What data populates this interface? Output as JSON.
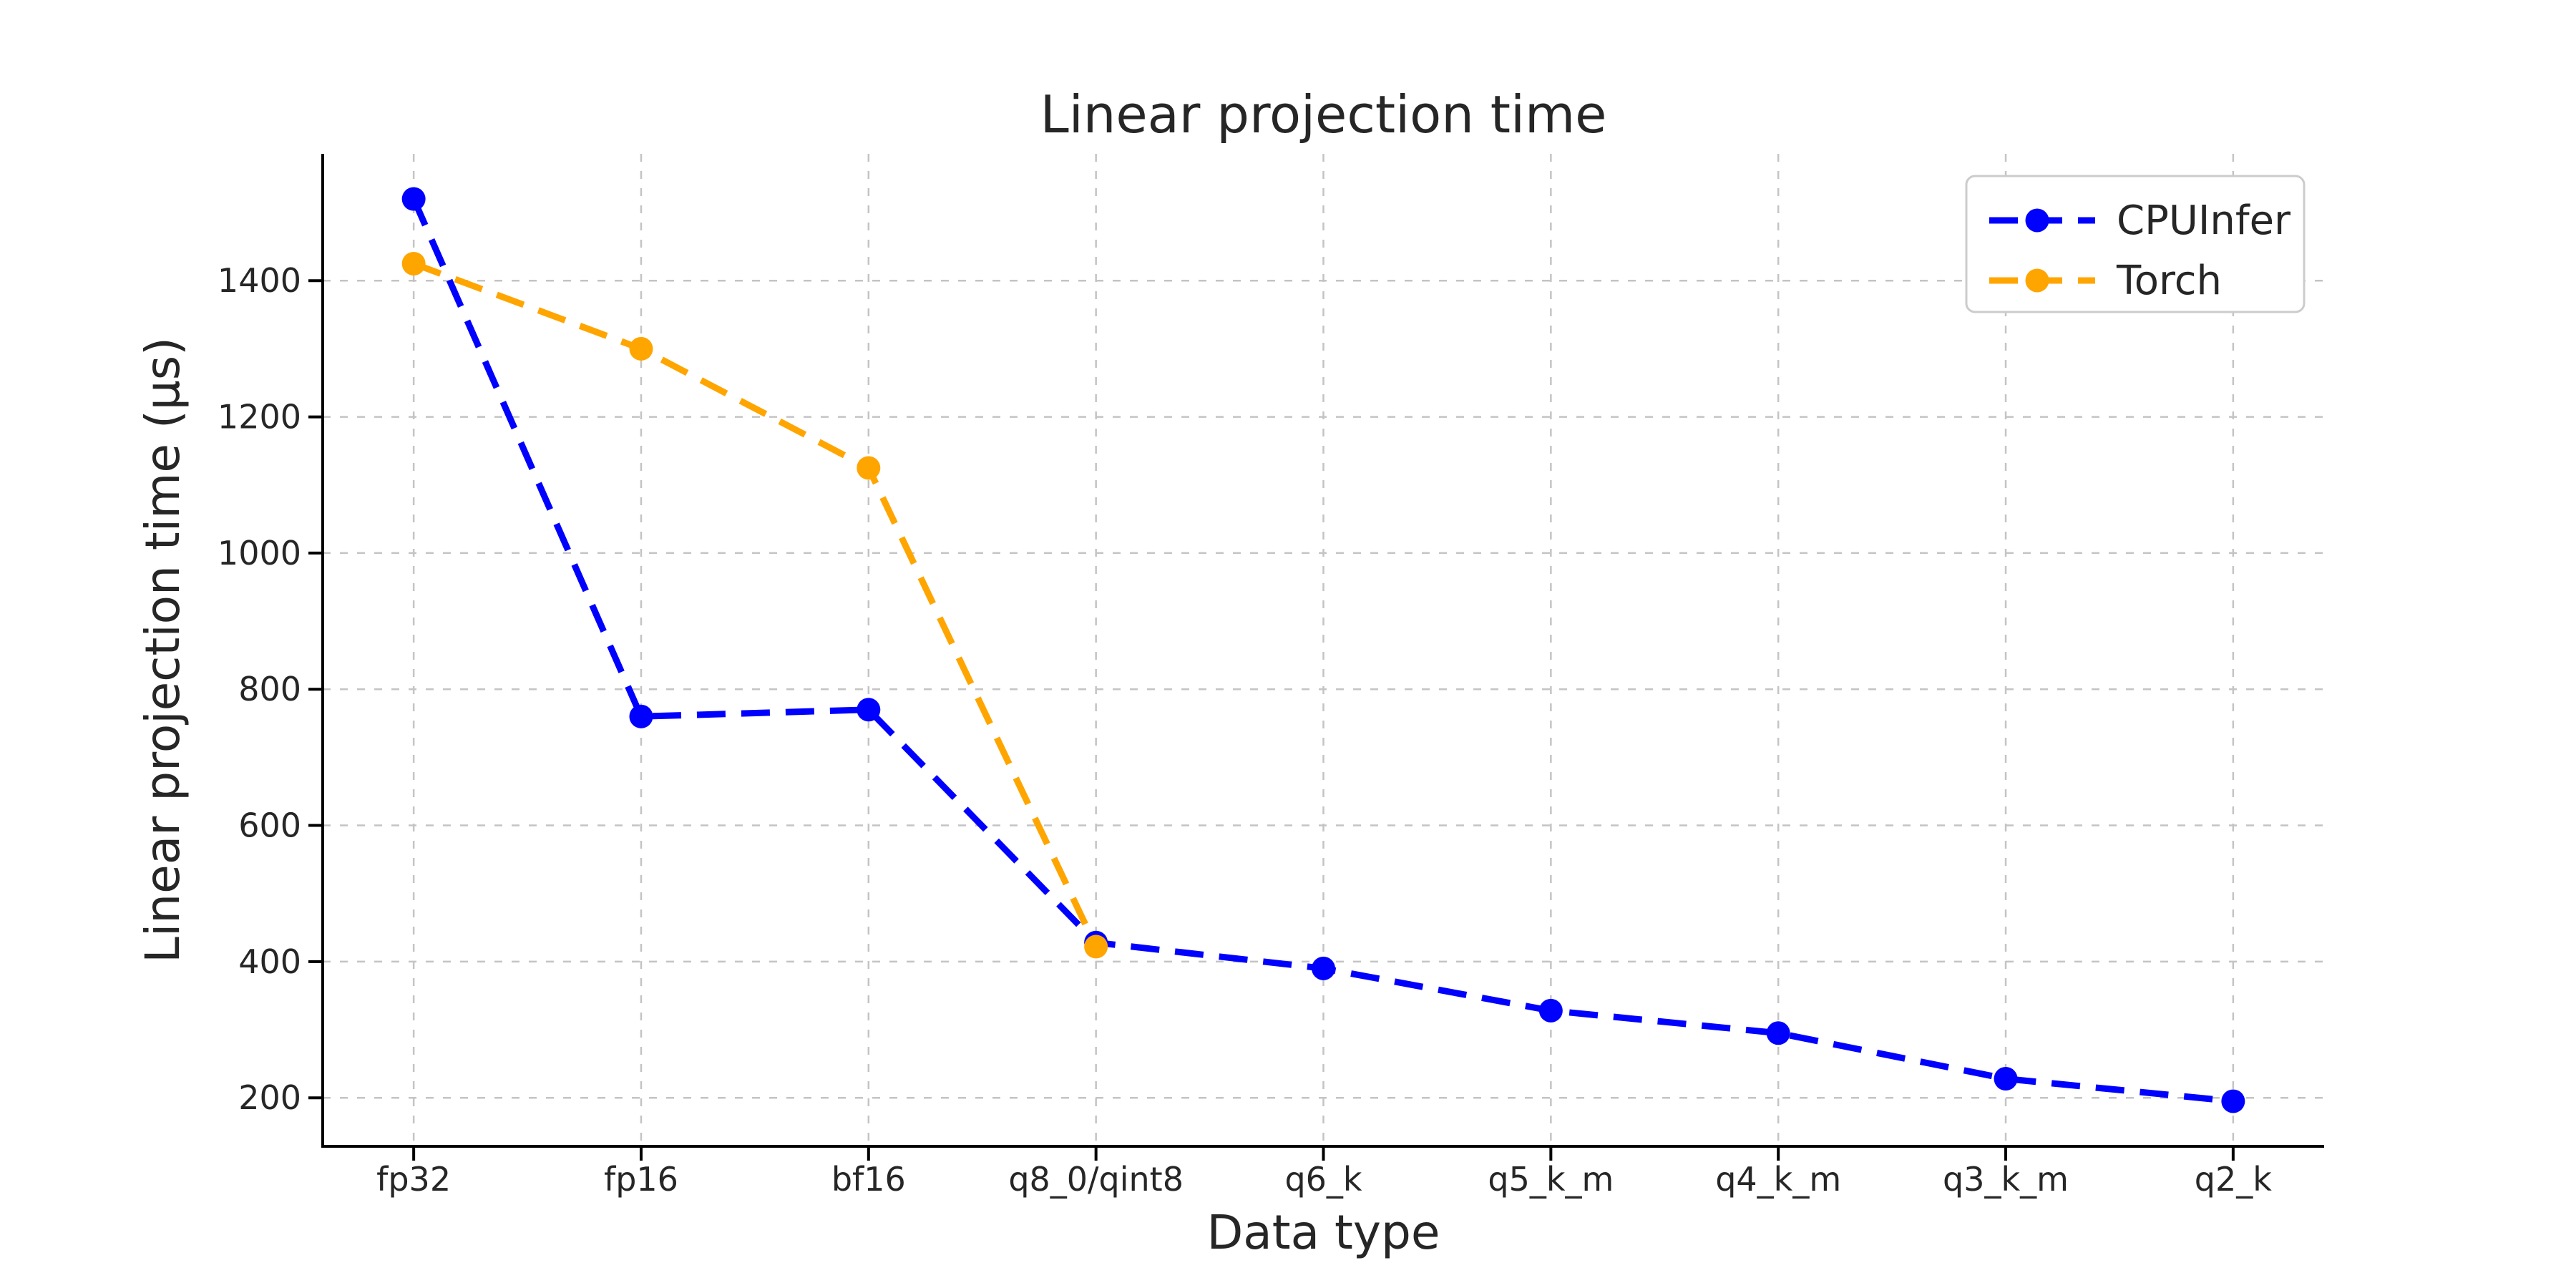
{
  "figure": {
    "background": "#ffffff",
    "text_color": "#262626",
    "grid_color": "#c4c4c4",
    "spine_color": "#000000",
    "legend_border_color": "#cccccc"
  },
  "chart_data": {
    "type": "line",
    "title": "Linear projection time",
    "xlabel": "Data type",
    "ylabel": "Linear projection time (μs)",
    "categories": [
      "fp32",
      "fp16",
      "bf16",
      "q8_0/qint8",
      "q6_k",
      "q5_k_m",
      "q4_k_m",
      "q3_k_m",
      "q2_k"
    ],
    "yticks": [
      200,
      400,
      600,
      800,
      1000,
      1200,
      1400
    ],
    "ylim": [
      128.75,
      1586.25
    ],
    "grid": true,
    "grid_style": "dashed",
    "legend_position": "upper right",
    "line_style": "dashed",
    "marker": "circle",
    "series": [
      {
        "name": "CPUInfer",
        "color": "#0000ff",
        "values": [
          1520,
          760,
          770,
          428,
          390,
          328,
          295,
          228,
          195
        ]
      },
      {
        "name": "Torch",
        "color": "#ffa500",
        "values": [
          1425,
          1300,
          1125,
          422,
          null,
          null,
          null,
          null,
          null
        ]
      }
    ]
  }
}
